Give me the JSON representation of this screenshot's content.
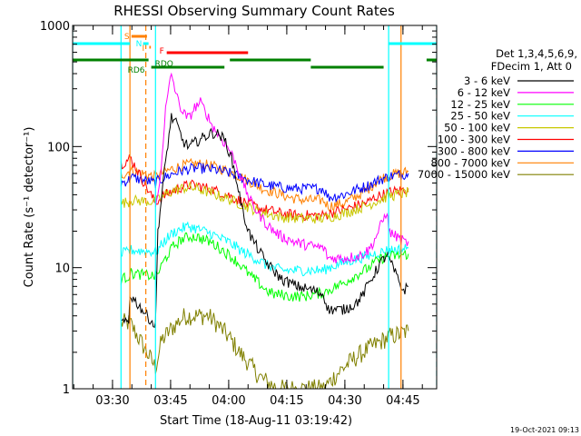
{
  "chart_data": {
    "type": "line",
    "title": "RHESSI Observing Summary Count Rates",
    "xlabel": "Start Time (18-Aug-11 03:19:42)",
    "ylabel": "Count Rate (s⁻¹ detector⁻¹)",
    "scale": "log",
    "ylim": [
      1,
      1000
    ],
    "xlim_minutes": [
      0,
      94
    ],
    "grid": false,
    "y_ticks": [
      {
        "value": 1,
        "label": "1"
      },
      {
        "value": 10,
        "label": "10"
      },
      {
        "value": 100,
        "label": "100"
      },
      {
        "value": 1000,
        "label": "1000"
      }
    ],
    "x_ticks": [
      {
        "value": 10.3,
        "label": "03:30"
      },
      {
        "value": 25.3,
        "label": "03:45"
      },
      {
        "value": 40.3,
        "label": "04:00"
      },
      {
        "value": 55.3,
        "label": "04:15"
      },
      {
        "value": 70.3,
        "label": "04:30"
      },
      {
        "value": 85.3,
        "label": "04:45"
      }
    ],
    "legend_header": [
      "Det 1,3,4,5,6,9,",
      "FDecim 1, Att 0"
    ],
    "legend_position": "right",
    "series": [
      {
        "name": "3 - 6 keV",
        "color": "#000000",
        "x": [
          12.5,
          14.5,
          14.8,
          21.4,
          22,
          24,
          25.5,
          27,
          28.5,
          30,
          33,
          36,
          38,
          39.5,
          41,
          42.5,
          44,
          46,
          50,
          54,
          58,
          62,
          64.8,
          66,
          70,
          73,
          75,
          76.5,
          78,
          79.5,
          80.5,
          81.2,
          81.6,
          84.8,
          85.5,
          86.7
        ],
        "y": [
          3.5,
          3.5,
          6,
          3.3,
          20,
          75,
          175,
          150,
          110,
          100,
          115,
          130,
          125,
          110,
          80,
          50,
          28,
          18,
          11,
          8,
          7,
          6.5,
          6,
          4.5,
          4.5,
          5,
          6,
          7.5,
          9,
          11,
          12,
          13,
          12,
          7,
          6.5,
          7
        ]
      },
      {
        "name": "6 - 12 keV",
        "color": "#ff00ff",
        "x": [
          21.4,
          22.5,
          24,
          25.5,
          27,
          28.5,
          30,
          31.5,
          33,
          34.5,
          36,
          38,
          40,
          42,
          44,
          46,
          48,
          50,
          52,
          54,
          56,
          58,
          60,
          62,
          64.8,
          66,
          70,
          74,
          76.5,
          78,
          79.5,
          80.5,
          81.2,
          81.6,
          84.8,
          86,
          86.7
        ],
        "y": [
          30,
          50,
          200,
          400,
          250,
          190,
          170,
          210,
          230,
          190,
          150,
          120,
          100,
          75,
          50,
          35,
          28,
          23,
          20,
          18,
          17,
          16,
          15.5,
          15,
          14.5,
          12,
          12,
          12.5,
          14,
          17,
          22,
          26,
          30,
          20,
          17,
          16,
          16.5
        ]
      },
      {
        "name": "12 - 25 keV",
        "color": "#00ff00",
        "x": [
          12.5,
          14.5,
          14.8,
          21.4,
          22,
          24,
          26,
          28,
          30,
          32,
          34,
          36,
          38,
          40,
          42,
          44,
          46,
          48,
          50,
          52,
          54,
          56,
          58,
          60,
          62,
          64.8,
          66,
          70,
          74,
          76.5,
          78,
          80,
          81.6,
          84,
          86.7
        ],
        "y": [
          8,
          8.5,
          9,
          8.5,
          9,
          12,
          15,
          17,
          18,
          18,
          17,
          16,
          14.5,
          13,
          11.5,
          10,
          8.5,
          7.5,
          6.5,
          6,
          6,
          5.8,
          5.8,
          5.8,
          6,
          6.2,
          6.5,
          7.5,
          9,
          10,
          11,
          12,
          12.5,
          12.5,
          13
        ]
      },
      {
        "name": "25 - 50 keV",
        "color": "#00ffff",
        "x": [
          12.5,
          14.5,
          14.8,
          21.4,
          22,
          24,
          26,
          28,
          30,
          32,
          34,
          36,
          38,
          40,
          42,
          44,
          46,
          48,
          50,
          52,
          54,
          56,
          58,
          60,
          62,
          64.8,
          66,
          70,
          74,
          76.5,
          78,
          80,
          81.6,
          84,
          86.7
        ],
        "y": [
          13,
          13.5,
          14,
          13.5,
          14,
          17,
          19.5,
          21,
          22,
          21,
          20,
          19,
          17.5,
          16.5,
          15,
          13.5,
          12.5,
          11.5,
          10.5,
          10,
          9.5,
          9.5,
          9.5,
          9.5,
          9.5,
          9.5,
          10,
          11,
          12,
          12.5,
          13,
          13.5,
          14,
          14,
          14.5
        ]
      },
      {
        "name": "50 - 100 keV",
        "color": "#c8c800",
        "x": [
          12.5,
          14.5,
          14.8,
          21.4,
          22,
          24,
          26,
          28,
          30,
          32,
          34,
          36,
          38,
          40,
          42,
          44,
          46,
          48,
          50,
          52,
          54,
          56,
          58,
          60,
          62,
          64.8,
          66,
          70,
          74,
          76.5,
          78,
          80,
          81.6,
          84,
          86.7
        ],
        "y": [
          34,
          35,
          36,
          35,
          36,
          40,
          43,
          45,
          46,
          45,
          43,
          41,
          39,
          37,
          35,
          33,
          31,
          29,
          28,
          27,
          26,
          26,
          25.5,
          25.5,
          25.5,
          25.5,
          26,
          28,
          31,
          33,
          35,
          37,
          39,
          40,
          42
        ]
      },
      {
        "name": "100 - 300 keV",
        "color": "#ff0000",
        "x": [
          12.5,
          14.5,
          14.8,
          21.4,
          22,
          24,
          26,
          28,
          30,
          32,
          34,
          36,
          38,
          40,
          42,
          44,
          46,
          48,
          50,
          52,
          54,
          56,
          58,
          60,
          62,
          64.8,
          66,
          70,
          74,
          76.5,
          78,
          80,
          82,
          84,
          86.7
        ],
        "y": [
          72,
          78,
          82,
          34,
          36,
          40,
          43,
          46,
          48,
          48,
          46,
          44,
          42,
          40,
          37,
          35,
          33,
          31,
          30,
          29,
          28,
          27.5,
          27,
          27,
          27,
          27,
          28,
          30,
          33,
          35,
          38,
          40,
          42,
          43,
          45
        ]
      },
      {
        "name": "300 - 800 keV",
        "color": "#0000ff",
        "x": [
          12.5,
          14.5,
          14.8,
          21.4,
          22,
          24,
          26,
          28,
          30,
          32,
          34,
          36,
          38,
          40,
          42,
          44,
          46,
          48,
          50,
          52,
          54,
          56,
          58,
          60,
          62,
          64.8,
          66,
          70,
          74,
          76.5,
          78,
          80,
          82,
          84,
          86.7
        ],
        "y": [
          50,
          53,
          56,
          50,
          52,
          56,
          60,
          63,
          65,
          66,
          66,
          65,
          63,
          61,
          58,
          55,
          52,
          50,
          48,
          47,
          46,
          45,
          45,
          45,
          45,
          45,
          38,
          40,
          45,
          48,
          51,
          54,
          57,
          58,
          60
        ]
      },
      {
        "name": "800 - 7000 keV",
        "color": "#ff8000",
        "x": [
          12.5,
          14.5,
          14.8,
          21.4,
          22,
          24,
          26,
          28,
          30,
          32,
          34,
          36,
          38,
          40,
          42,
          44,
          46,
          48,
          50,
          52,
          54,
          56,
          58,
          60,
          62,
          64.8,
          66,
          70,
          74,
          76.5,
          78,
          80,
          82,
          84,
          86.7
        ],
        "y": [
          58,
          62,
          64,
          56,
          58,
          62,
          66,
          69,
          71,
          72,
          71,
          69,
          66,
          63,
          59,
          55,
          51,
          47,
          44,
          42,
          40,
          38,
          37,
          36,
          36,
          36,
          32,
          34,
          40,
          45,
          50,
          55,
          58,
          60,
          62
        ]
      },
      {
        "name": "7000 - 15000 keV",
        "color": "#808000",
        "x": [
          12.5,
          14.8,
          21.4,
          23,
          25,
          27,
          29,
          31,
          33,
          35,
          37,
          39,
          41,
          43,
          45,
          47,
          49,
          51,
          53,
          55,
          57,
          59,
          61,
          63,
          64.8,
          66,
          68,
          70,
          72,
          74,
          76,
          78,
          80,
          82,
          84,
          86.7
        ],
        "y": [
          3.5,
          3.5,
          1.5,
          2.5,
          3,
          3.5,
          4,
          4,
          4,
          4,
          3.5,
          3,
          2.5,
          2,
          1.7,
          1.4,
          1.2,
          1.1,
          1,
          1,
          1,
          1,
          1,
          1,
          1,
          1.1,
          1.3,
          1.5,
          1.7,
          1.9,
          2.1,
          2.3,
          2.5,
          2.7,
          2.8,
          3
        ]
      }
    ],
    "cutoffs": [
      {
        "color": "#00ffff",
        "style": "solid",
        "x": 0
      },
      {
        "color": "#00ffff",
        "style": "solid",
        "x": 12.5
      },
      {
        "color": "#ff8000",
        "style": "solid",
        "x": 14.8
      },
      {
        "color": "#ff8000",
        "style": "dashed",
        "x": 18.9
      },
      {
        "color": "#00ffff",
        "style": "solid",
        "x": 21.4
      },
      {
        "color": "#00ffff",
        "style": "solid",
        "x": 81.6
      },
      {
        "color": "#ff8000",
        "style": "solid",
        "x": 84.8
      },
      {
        "color": "#00ffff",
        "style": "dashed",
        "x": 94
      }
    ],
    "state_bars": [
      {
        "label": "",
        "color": "#00ffff",
        "x0": 0,
        "x1": 14.8,
        "level": 1
      },
      {
        "label": "",
        "color": "#00ffff",
        "x0": 81.6,
        "x1": 94,
        "level": 1
      },
      {
        "label": "S",
        "color": "#ff8000",
        "x0": 15.2,
        "x1": 19.2,
        "level": 0
      },
      {
        "label": "N",
        "color": "#00ffff",
        "x0": 18.2,
        "x1": 19.6,
        "level": 1
      },
      {
        "label": "I",
        "color": "#ff8000",
        "x0": 19.8,
        "x1": 20.2,
        "level": 2
      },
      {
        "label": "F",
        "color": "#ff0000",
        "x0": 24.3,
        "x1": 45.3,
        "level": 3
      },
      {
        "label": "RDO",
        "color": "#008000",
        "x0": 0,
        "x1": 19.6,
        "level": 4
      },
      {
        "label": "",
        "color": "#008000",
        "x0": 40.6,
        "x1": 61.5,
        "level": 4
      },
      {
        "label": "",
        "color": "#008000",
        "x0": 91.4,
        "x1": 94,
        "level": 4
      },
      {
        "label": "RD6",
        "color": "#008000",
        "x0": 20.3,
        "x1": 39.2,
        "level": 5
      },
      {
        "label": "",
        "color": "#008000",
        "x0": 61.5,
        "x1": 80.3,
        "level": 5
      }
    ]
  },
  "footer": {
    "timestamp": "19-Oct-2021 09:13"
  }
}
